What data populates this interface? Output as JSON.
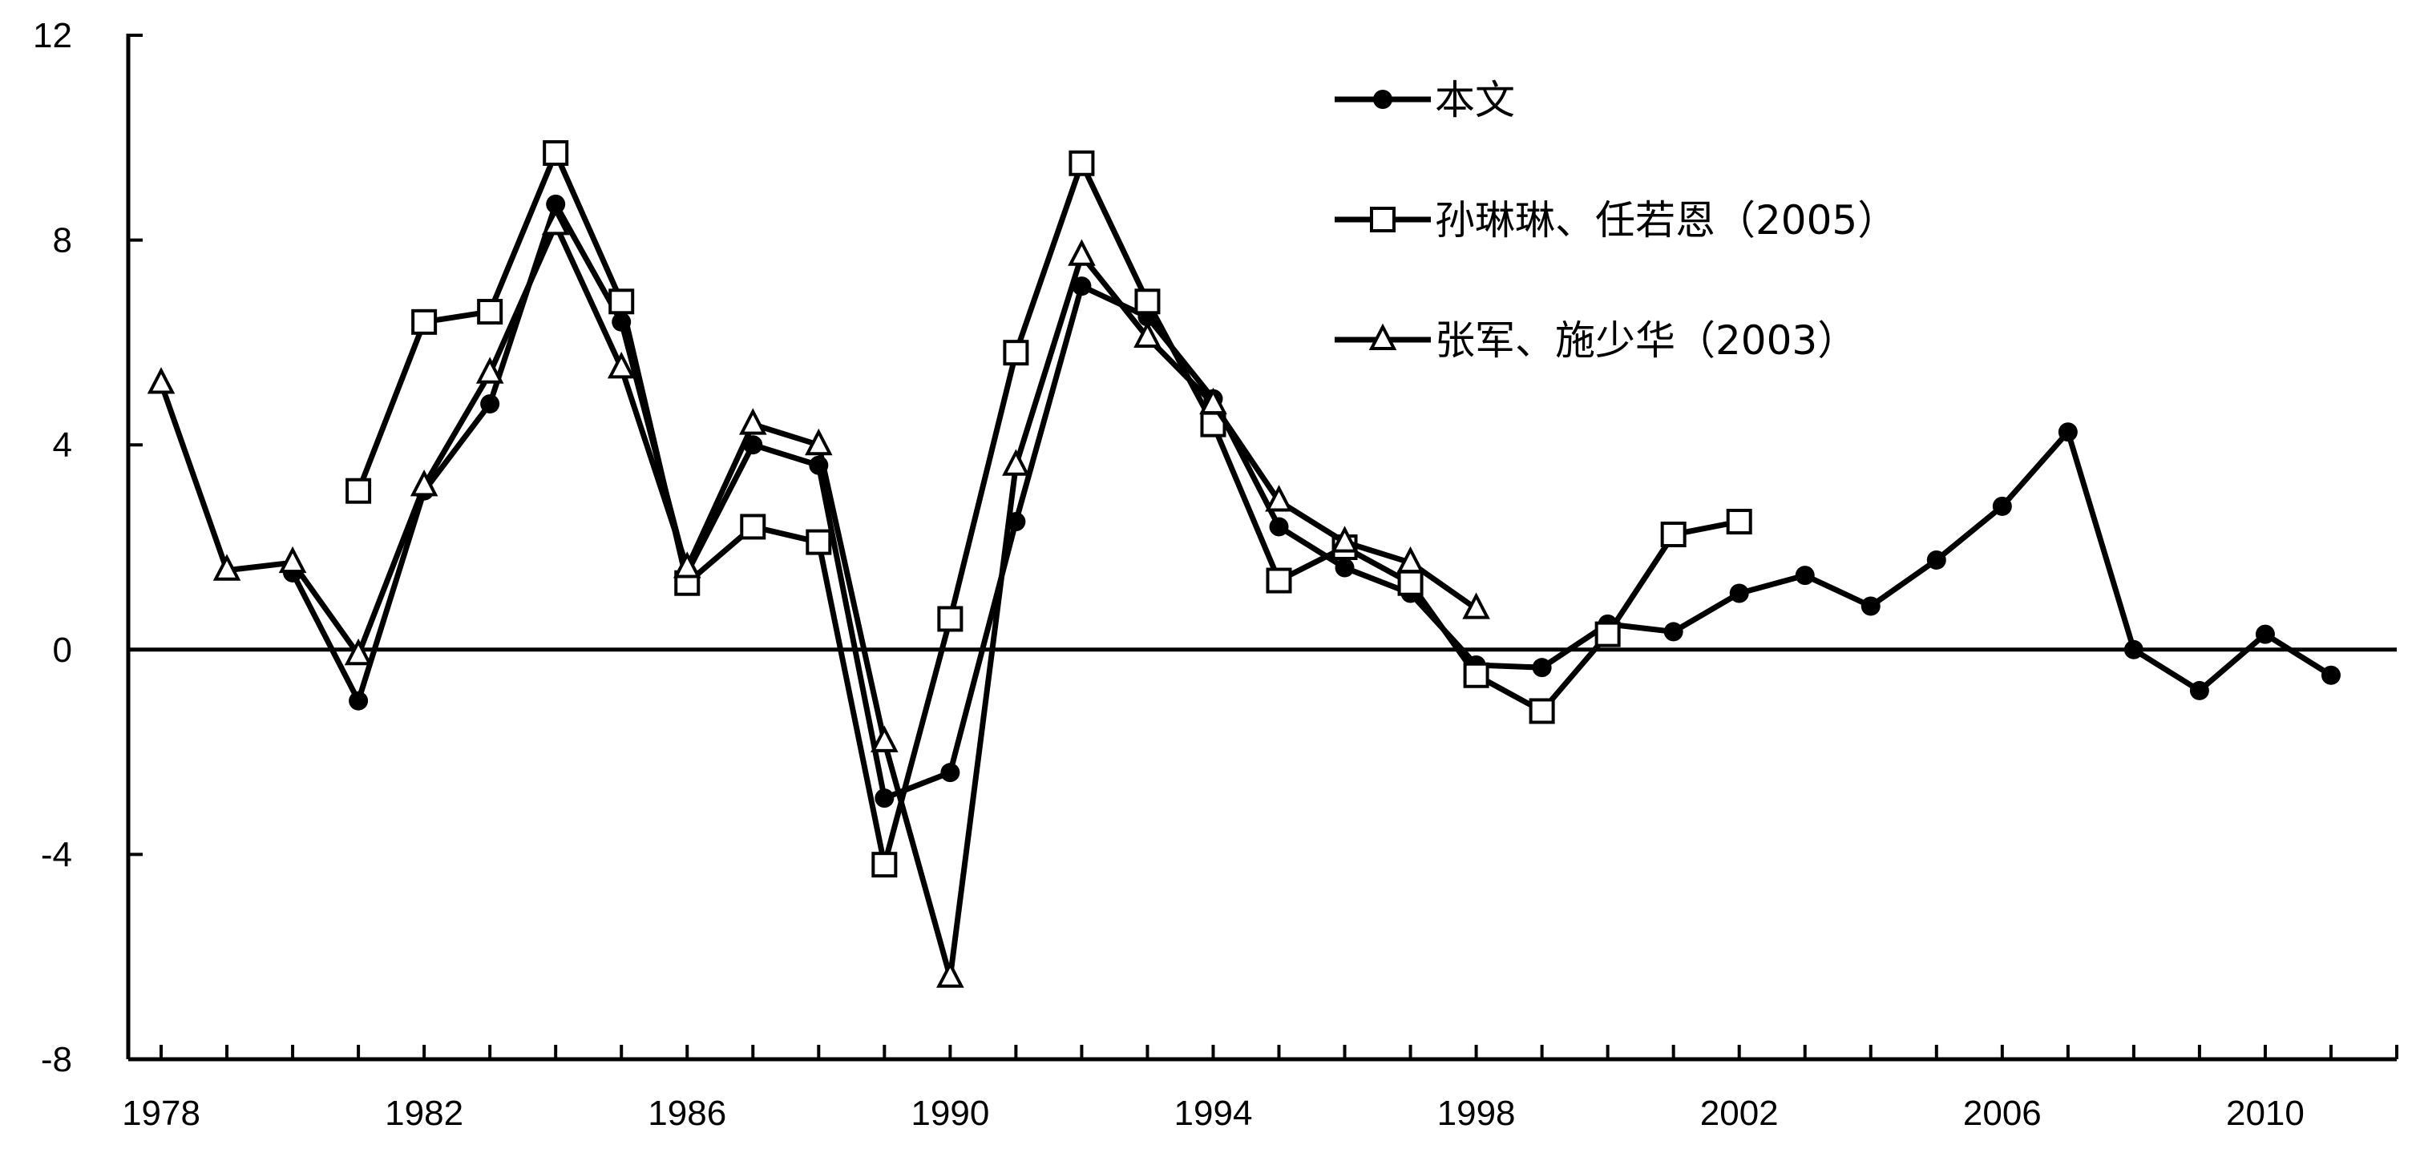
{
  "chart_data": {
    "type": "line",
    "title": "",
    "xlabel": "",
    "ylabel": "",
    "xlim": [
      1977.5,
      2012
    ],
    "ylim": [
      -8,
      12
    ],
    "yticks": [
      -8,
      -4,
      0,
      4,
      8,
      12
    ],
    "yticklabels": [
      "-8",
      "-4",
      "0",
      "4",
      "8",
      "12"
    ],
    "xticks": [
      1978,
      1982,
      1986,
      1990,
      1994,
      1998,
      2002,
      2006,
      2010
    ],
    "xticklabels": [
      "1978",
      "1982",
      "1986",
      "1990",
      "1994",
      "1998",
      "2002",
      "2006",
      "2010"
    ],
    "grid": false,
    "zero_line": true,
    "legend_position": "top-center",
    "series": [
      {
        "name": "本文",
        "marker": "circle",
        "color": "#000000",
        "x": [
          1980,
          1981,
          1982,
          1983,
          1984,
          1985,
          1986,
          1987,
          1988,
          1989,
          1990,
          1991,
          1992,
          1993,
          1994,
          1995,
          1996,
          1997,
          1998,
          1999,
          2000,
          2001,
          2002,
          2003,
          2004,
          2005,
          2006,
          2007,
          2008,
          2009,
          2010,
          2011
        ],
        "y": [
          1.5,
          -1.0,
          3.1,
          4.8,
          8.7,
          6.4,
          1.5,
          4.0,
          3.6,
          -2.9,
          -2.4,
          2.5,
          7.1,
          6.5,
          4.9,
          2.4,
          1.6,
          1.1,
          -0.3,
          -0.35,
          0.5,
          0.35,
          1.1,
          1.45,
          0.85,
          1.75,
          2.8,
          4.25,
          0.0,
          -0.8,
          0.3,
          -0.5
        ]
      },
      {
        "name": "孙琳琳、任若恩（2005）",
        "marker": "square",
        "color": "#000000",
        "x": [
          1981,
          1982,
          1983,
          1984,
          1985,
          1986,
          1987,
          1988,
          1989,
          1990,
          1991,
          1992,
          1993,
          1994,
          1995,
          1996,
          1997,
          1998,
          1999,
          2000,
          2001,
          2002
        ],
        "y": [
          3.1,
          6.4,
          6.6,
          9.7,
          6.8,
          1.3,
          2.4,
          2.1,
          -4.2,
          0.6,
          5.8,
          9.5,
          6.8,
          4.4,
          1.35,
          2.0,
          1.3,
          -0.5,
          -1.2,
          0.3,
          2.25,
          2.5
        ]
      },
      {
        "name": "张军、施少华（2003）",
        "marker": "triangle",
        "color": "#000000",
        "x": [
          1978,
          1979,
          1980,
          1981,
          1982,
          1983,
          1984,
          1985,
          1986,
          1987,
          1988,
          1989,
          1990,
          1991,
          1992,
          1993,
          1994,
          1995,
          1996,
          1997,
          1998
        ],
        "y": [
          5.2,
          1.55,
          1.7,
          -0.1,
          3.2,
          5.4,
          8.3,
          5.5,
          1.6,
          4.4,
          4.0,
          -1.8,
          -6.4,
          3.6,
          7.7,
          6.1,
          4.8,
          2.9,
          2.1,
          1.7,
          0.8
        ]
      }
    ]
  }
}
